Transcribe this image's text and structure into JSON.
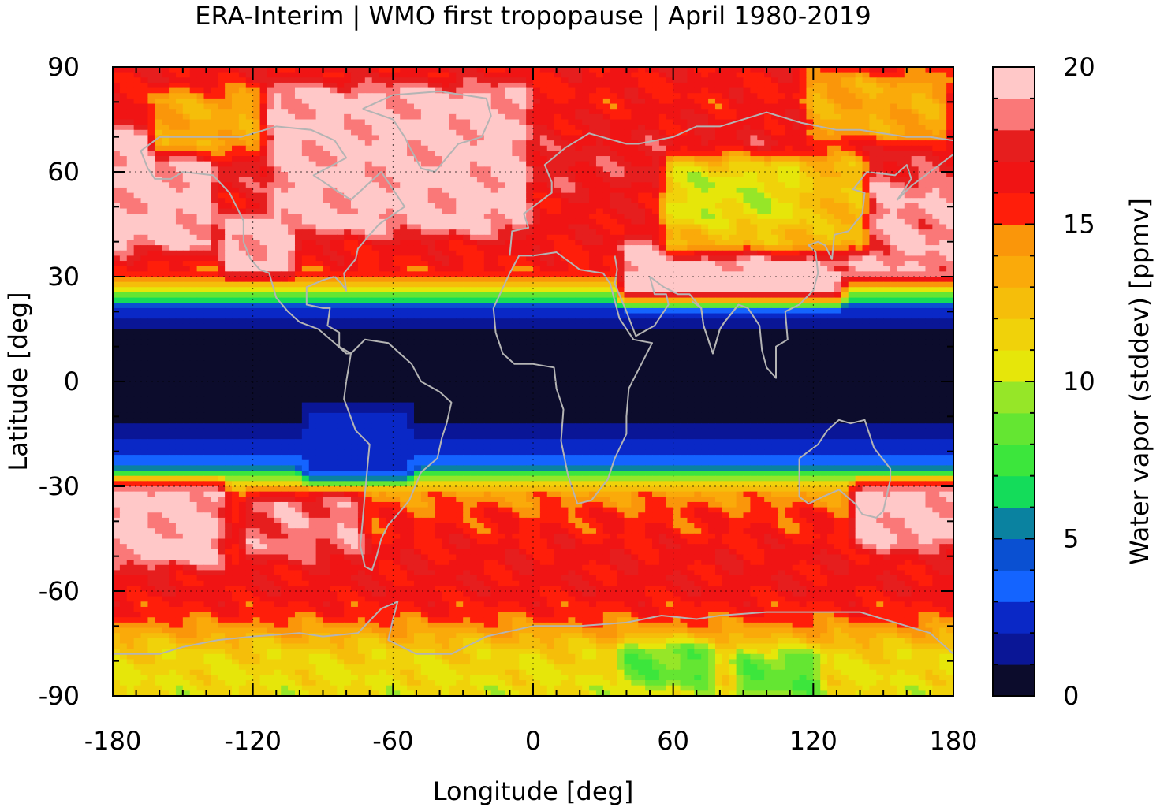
{
  "chart_data": {
    "type": "heatmap",
    "title": "ERA-Interim | WMO first tropopause | April 1980-2019",
    "xlabel": "Longitude [deg]",
    "ylabel": "Latitude [deg]",
    "xlim": [
      -180,
      180
    ],
    "ylim": [
      -90,
      90
    ],
    "xticks": [
      -180,
      -120,
      -60,
      0,
      60,
      120,
      180
    ],
    "yticks": [
      90,
      60,
      30,
      0,
      -30,
      -60,
      -90
    ],
    "grid": "dotted",
    "coastlines": "gray",
    "colorbar": {
      "label": "Water vapor (stddev) [ppmv]",
      "range": [
        0,
        20
      ],
      "ticks": [
        0,
        5,
        10,
        15,
        20
      ],
      "step": 1,
      "colors": [
        "#0c0c2c",
        "#0a1696",
        "#0a28c6",
        "#1464ff",
        "#0a50d2",
        "#0a82a0",
        "#0ab478",
        "#14dc5a",
        "#3ce63c",
        "#64e632",
        "#96e628",
        "#c8e614",
        "#e6e60a",
        "#f0d20a",
        "#f5be0a",
        "#faaa0a",
        "#fa960a",
        "#fa6e0a",
        "#ff1e0a",
        "#f01414",
        "#e61e1e",
        "#f03232",
        "#fa7878",
        "#ffc8c8"
      ],
      "levels": [
        0,
        1,
        2,
        3,
        4,
        5,
        6,
        7,
        8,
        9,
        10,
        11,
        12,
        13,
        14,
        15,
        16,
        17,
        18,
        19,
        20
      ]
    },
    "zonal_profile": [
      {
        "lat": 90,
        "value": 16.5
      },
      {
        "lat": 80,
        "value": 16.0
      },
      {
        "lat": 70,
        "value": 17.0
      },
      {
        "lat": 60,
        "value": 17.5
      },
      {
        "lat": 50,
        "value": 16.5
      },
      {
        "lat": 40,
        "value": 16.5
      },
      {
        "lat": 33,
        "value": 16.0
      },
      {
        "lat": 30,
        "value": 15.0
      },
      {
        "lat": 27,
        "value": 11.0
      },
      {
        "lat": 24,
        "value": 7.0
      },
      {
        "lat": 21,
        "value": 3.0
      },
      {
        "lat": 17,
        "value": 1.5
      },
      {
        "lat": 12,
        "value": 0.5
      },
      {
        "lat": 0,
        "value": 0.3
      },
      {
        "lat": -10,
        "value": 0.5
      },
      {
        "lat": -14,
        "value": 1.5
      },
      {
        "lat": -20,
        "value": 2.5
      },
      {
        "lat": -24,
        "value": 4.0
      },
      {
        "lat": -27,
        "value": 8.0
      },
      {
        "lat": -29,
        "value": 11.0
      },
      {
        "lat": -32,
        "value": 14.0
      },
      {
        "lat": -38,
        "value": 15.5
      },
      {
        "lat": -50,
        "value": 16.5
      },
      {
        "lat": -60,
        "value": 16.5
      },
      {
        "lat": -67,
        "value": 15.5
      },
      {
        "lat": -72,
        "value": 13.5
      },
      {
        "lat": -78,
        "value": 11.5
      },
      {
        "lat": -85,
        "value": 11.0
      },
      {
        "lat": -90,
        "value": 11.0
      }
    ],
    "regions": [
      {
        "lon": [
          -110,
          -5
        ],
        "lat": [
          45,
          82
        ],
        "value": 19.5
      },
      {
        "lon": [
          -180,
          -140
        ],
        "lat": [
          40,
          70
        ],
        "value": 19.5
      },
      {
        "lon": [
          -130,
          -105
        ],
        "lat": [
          33,
          45
        ],
        "value": 19.5
      },
      {
        "lon": [
          40,
          130
        ],
        "lat": [
          26,
          37
        ],
        "value": 19.5
      },
      {
        "lon": [
          135,
          180
        ],
        "lat": [
          32,
          55
        ],
        "value": 19.0
      },
      {
        "lon": [
          -180,
          -135
        ],
        "lat": [
          -50,
          -32
        ],
        "value": 19.5
      },
      {
        "lon": [
          140,
          180
        ],
        "lat": [
          -45,
          -32
        ],
        "value": 19.5
      },
      {
        "lon": [
          -120,
          -75
        ],
        "lat": [
          -48,
          -35
        ],
        "value": 18.5
      },
      {
        "lon": [
          60,
          140
        ],
        "lat": [
          40,
          62
        ],
        "value": 12.5
      },
      {
        "lon": [
          60,
          110
        ],
        "lat": [
          48,
          58
        ],
        "value": 10.5
      },
      {
        "lon": [
          -160,
          -120
        ],
        "lat": [
          68,
          80
        ],
        "value": 13.5
      },
      {
        "lon": [
          120,
          175
        ],
        "lat": [
          72,
          85
        ],
        "value": 13.5
      },
      {
        "lon": [
          -95,
          -55
        ],
        "lat": [
          -25,
          -10
        ],
        "value": 2.5
      },
      {
        "lon": [
          40,
          75
        ],
        "lat": [
          -85,
          -78
        ],
        "value": 8.5
      },
      {
        "lon": [
          90,
          120
        ],
        "lat": [
          -88,
          -80
        ],
        "value": 8.5
      }
    ],
    "coastline_regions": [
      "North America",
      "South America",
      "Greenland",
      "Europe",
      "Africa",
      "Asia",
      "India",
      "Australia",
      "Antarctica"
    ]
  }
}
